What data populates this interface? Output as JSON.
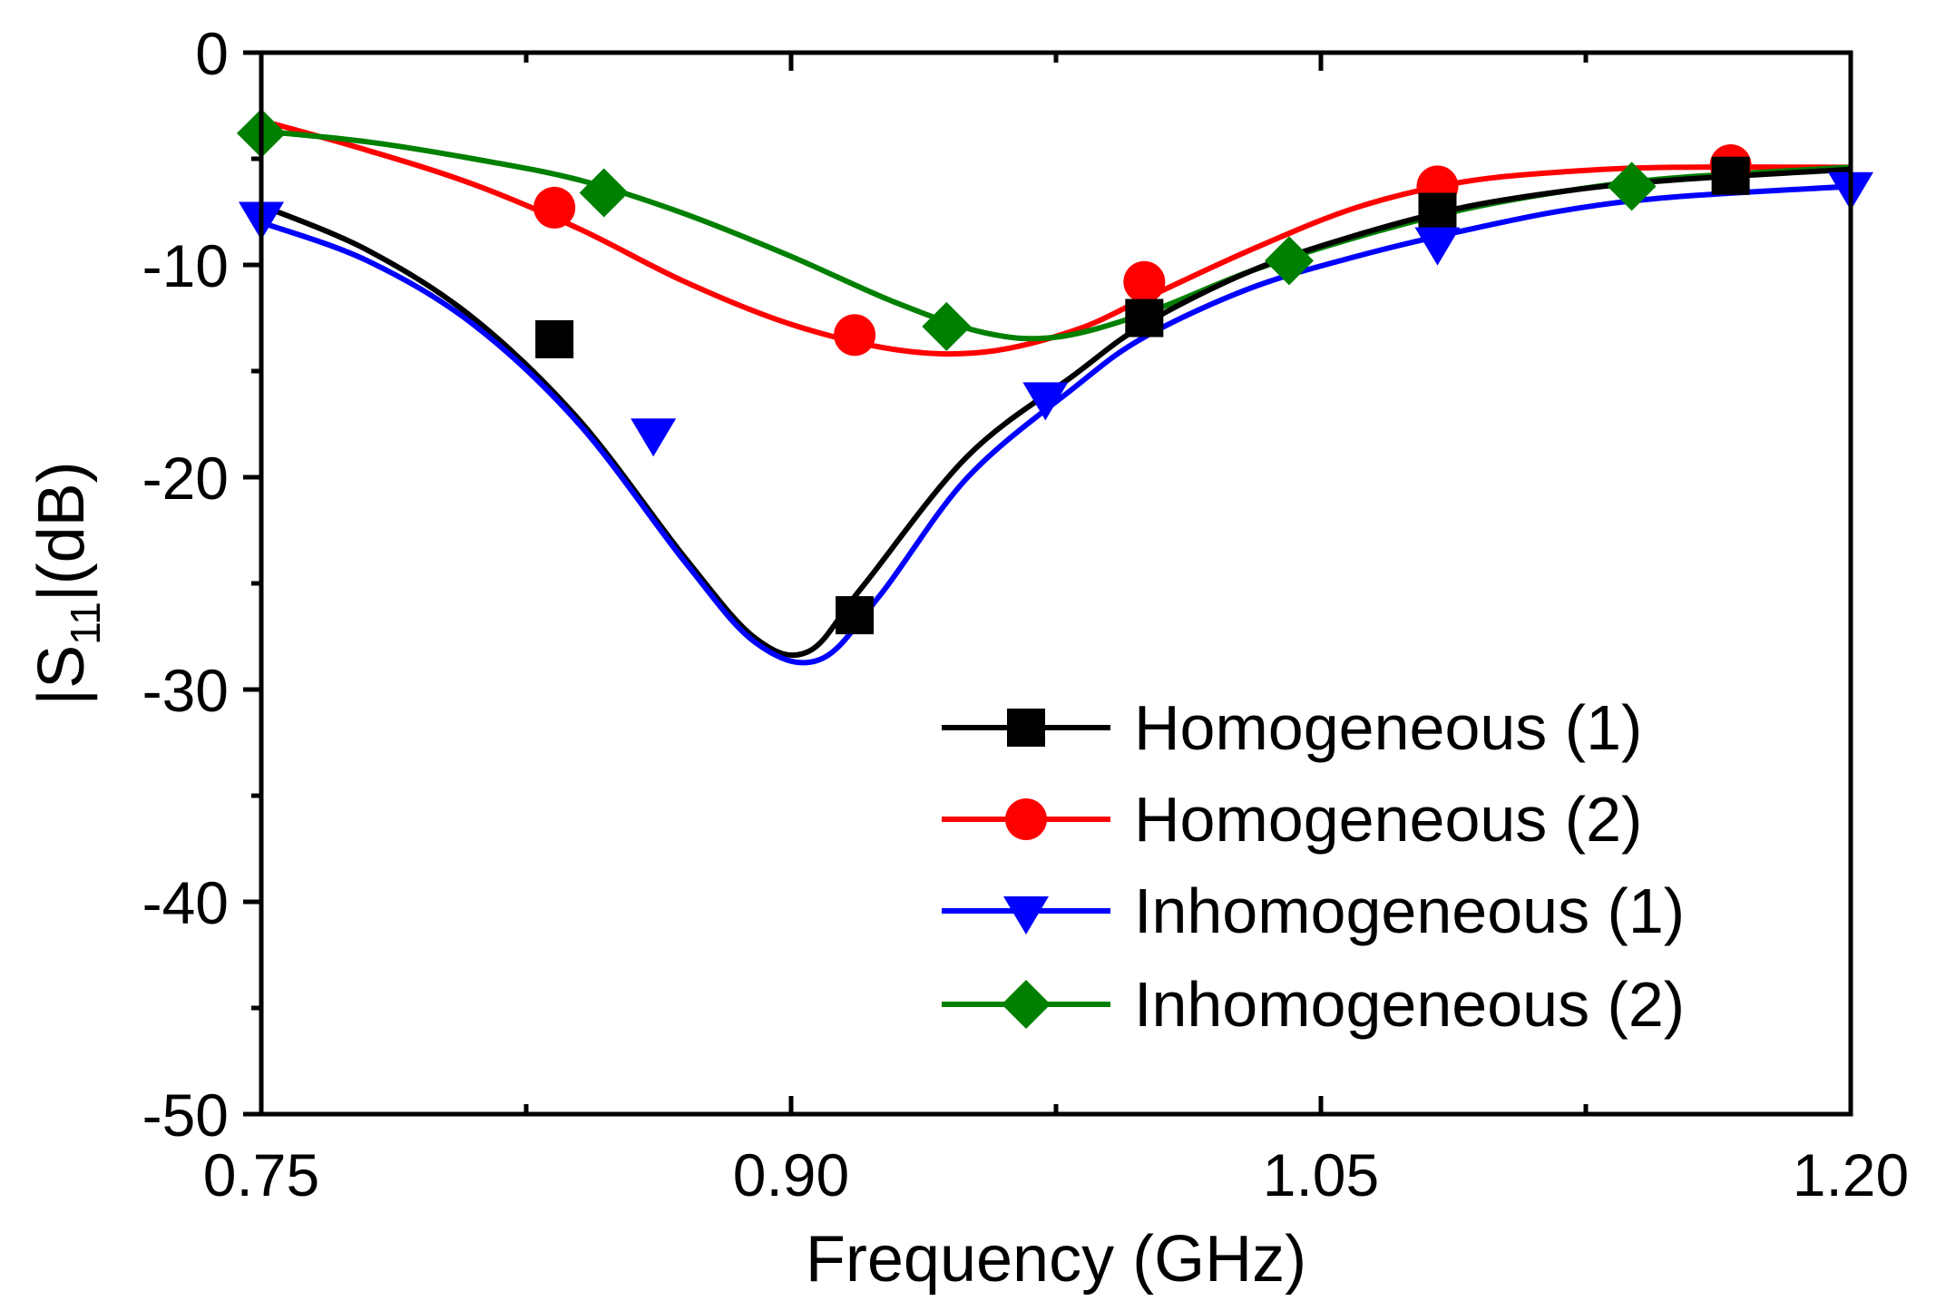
{
  "chart_data": {
    "type": "line",
    "title": "",
    "xlabel": "Frequency (GHz)",
    "ylabel_parts": {
      "prefix": "|S",
      "subscript": "11",
      "suffix": "|(dB)"
    },
    "xlim": [
      0.75,
      1.2
    ],
    "ylim": [
      -50,
      0
    ],
    "x_ticks": [
      0.75,
      0.9,
      1.05,
      1.2
    ],
    "x_tick_labels": [
      "0.75",
      "0.90",
      "1.05",
      "1.20"
    ],
    "y_ticks": [
      0,
      -10,
      -20,
      -30,
      -40,
      -50
    ],
    "y_tick_labels": [
      "0",
      "-10",
      "-20",
      "-30",
      "-40",
      "-50"
    ],
    "grid": false,
    "legend_position": "bottom-right",
    "series": [
      {
        "name": "Homogeneous (1)",
        "color": "#000000",
        "marker": "square",
        "x": [
          0.75,
          0.78,
          0.81,
          0.84,
          0.87,
          0.89,
          0.905,
          0.92,
          0.95,
          0.98,
          1.0,
          1.03,
          1.06,
          1.09,
          1.12,
          1.15,
          1.2
        ],
        "y": [
          -7.2,
          -9.3,
          -12.5,
          -17.3,
          -23.8,
          -27.6,
          -28.2,
          -25.2,
          -19.0,
          -15.2,
          -12.8,
          -10.3,
          -8.6,
          -7.3,
          -6.5,
          -6.0,
          -5.5
        ],
        "marker_x": [
          0.833,
          0.918,
          1.0,
          1.083,
          1.166
        ],
        "marker_y": [
          -13.5,
          -26.5,
          -12.5,
          -7.5,
          -5.8
        ]
      },
      {
        "name": "Homogeneous (2)",
        "color": "#ff0000",
        "marker": "circle",
        "x": [
          0.75,
          0.78,
          0.81,
          0.84,
          0.87,
          0.9,
          0.93,
          0.955,
          0.98,
          1.0,
          1.03,
          1.06,
          1.09,
          1.12,
          1.15,
          1.2
        ],
        "y": [
          -3.2,
          -4.6,
          -6.2,
          -8.3,
          -10.8,
          -12.8,
          -14.0,
          -14.1,
          -13.1,
          -11.6,
          -9.3,
          -7.3,
          -6.1,
          -5.6,
          -5.4,
          -5.4
        ],
        "marker_x": [
          0.833,
          0.918,
          1.0,
          1.083,
          1.166
        ],
        "marker_y": [
          -7.3,
          -13.3,
          -10.8,
          -6.3,
          -5.3
        ]
      },
      {
        "name": "Inhomogeneous (1)",
        "color": "#0000ff",
        "marker": "triangle-down",
        "x": [
          0.75,
          0.78,
          0.81,
          0.84,
          0.87,
          0.89,
          0.908,
          0.925,
          0.95,
          0.98,
          1.0,
          1.03,
          1.06,
          1.09,
          1.12,
          1.15,
          1.2
        ],
        "y": [
          -8.0,
          -9.8,
          -12.8,
          -17.5,
          -24.0,
          -27.8,
          -28.6,
          -25.6,
          -20.0,
          -15.8,
          -13.4,
          -11.1,
          -9.6,
          -8.4,
          -7.4,
          -6.8,
          -6.3
        ],
        "marker_x": [
          0.75,
          0.861,
          0.972,
          1.083,
          1.2
        ],
        "marker_y": [
          -7.8,
          -18.0,
          -16.3,
          -9.0,
          -6.4
        ]
      },
      {
        "name": "Inhomogeneous (2)",
        "color": "#008000",
        "marker": "diamond",
        "x": [
          0.75,
          0.78,
          0.81,
          0.84,
          0.87,
          0.9,
          0.93,
          0.955,
          0.975,
          1.0,
          1.03,
          1.06,
          1.09,
          1.12,
          1.15,
          1.2
        ],
        "y": [
          -3.7,
          -4.2,
          -5.0,
          -6.0,
          -7.6,
          -9.6,
          -11.8,
          -13.2,
          -13.4,
          -12.3,
          -10.3,
          -8.7,
          -7.4,
          -6.5,
          -5.9,
          -5.4
        ],
        "marker_x": [
          0.75,
          0.847,
          0.944,
          1.041,
          1.138
        ],
        "marker_y": [
          -3.8,
          -6.6,
          -12.9,
          -9.8,
          -6.3
        ]
      }
    ]
  }
}
